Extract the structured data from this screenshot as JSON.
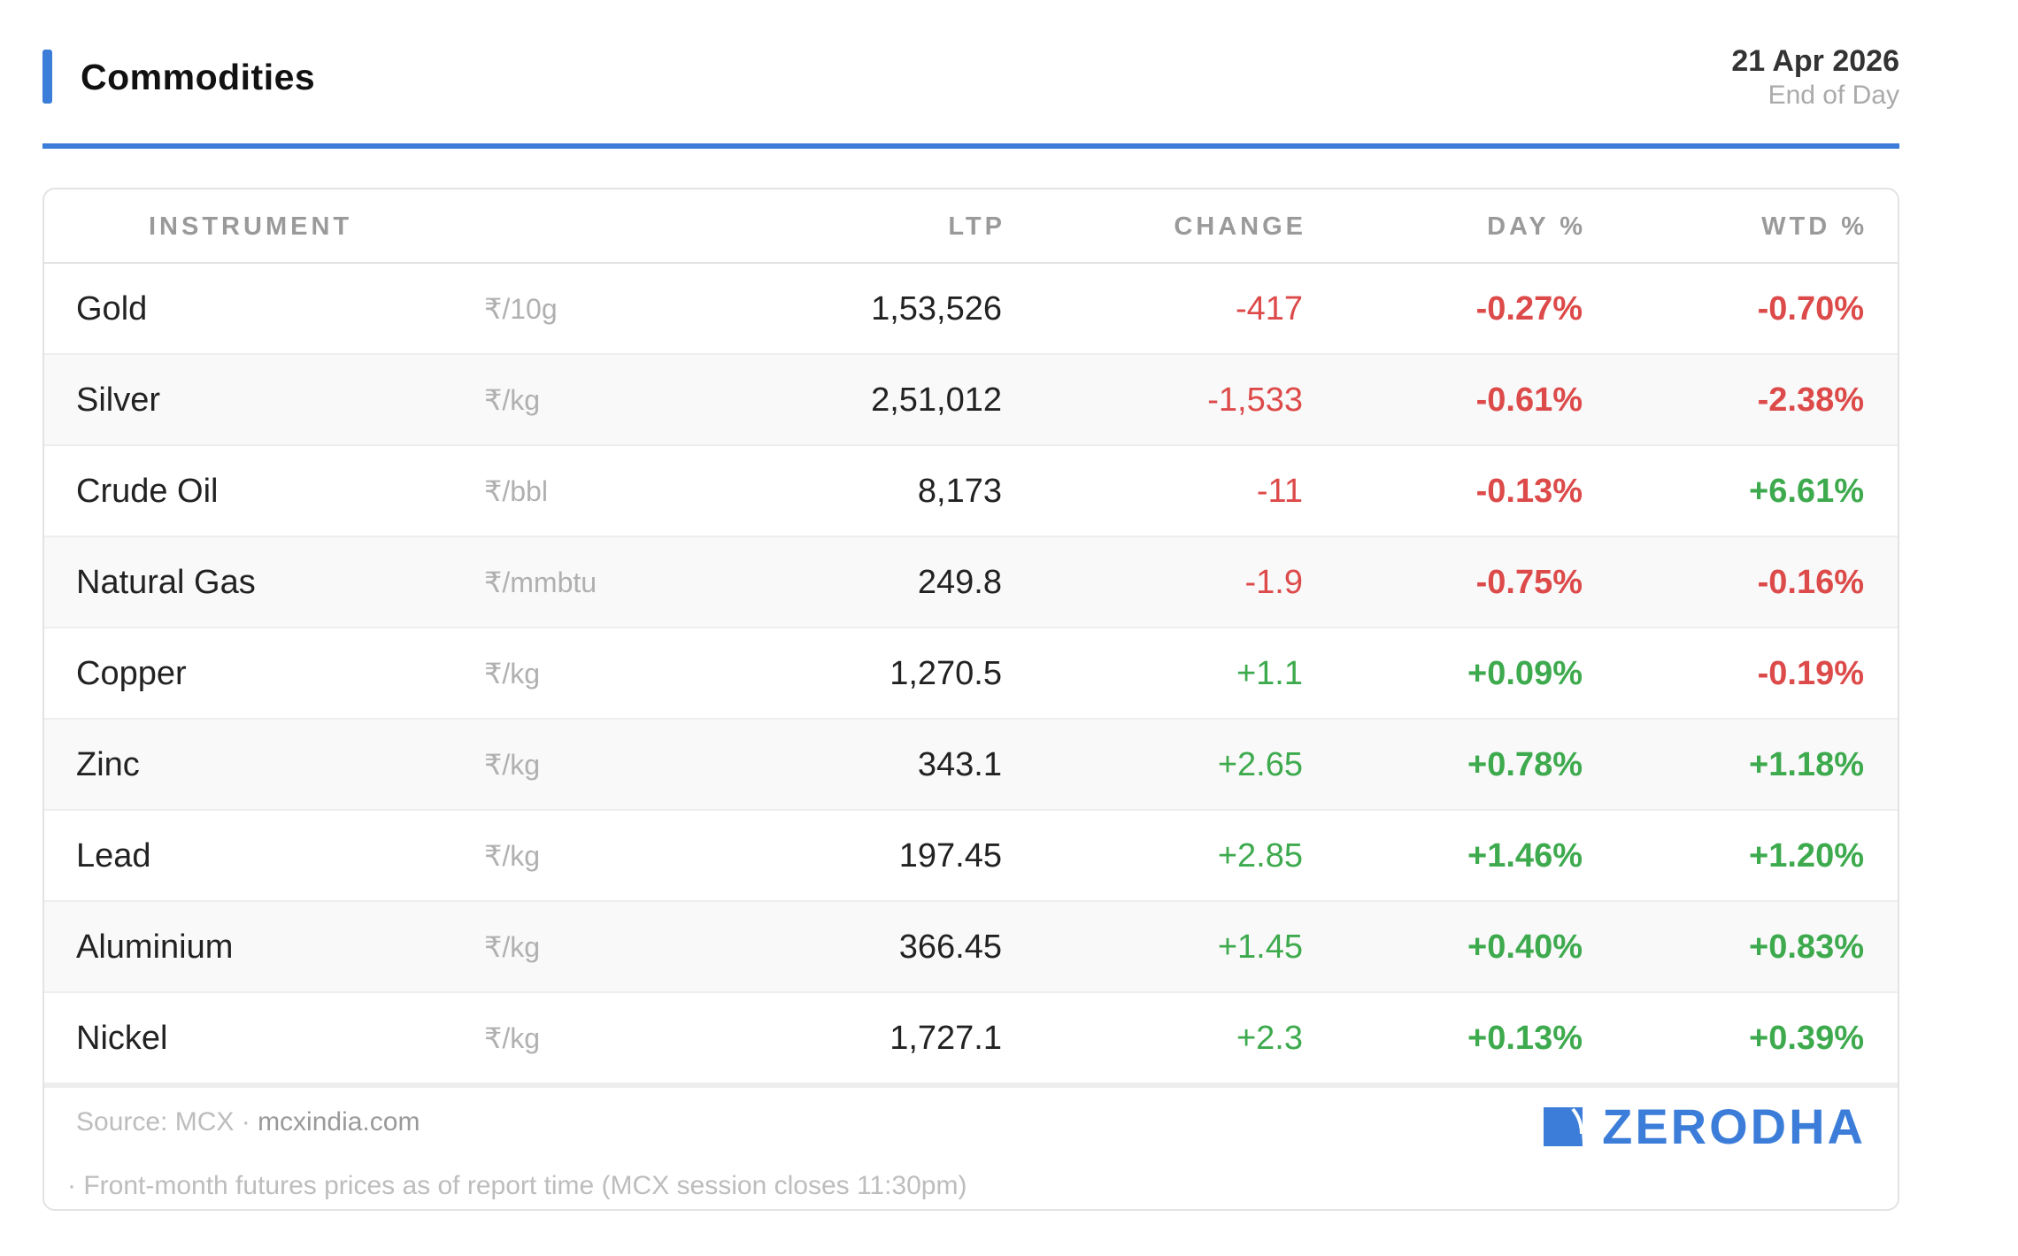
{
  "header": {
    "title": "Commodities",
    "date": "21 Apr 2026",
    "subtitle": "End of Day"
  },
  "table": {
    "columns": {
      "instrument": "INSTRUMENT",
      "ltp": "LTP",
      "change": "CHANGE",
      "day_pct": "DAY %",
      "wtd_pct": "WTD %"
    },
    "rows": [
      {
        "name": "Gold",
        "unit": "₹/10g",
        "ltp": "1,53,526",
        "change": "-417",
        "day_pct": "-0.27%",
        "wtd_pct": "-0.70%"
      },
      {
        "name": "Silver",
        "unit": "₹/kg",
        "ltp": "2,51,012",
        "change": "-1,533",
        "day_pct": "-0.61%",
        "wtd_pct": "-2.38%"
      },
      {
        "name": "Crude Oil",
        "unit": "₹/bbl",
        "ltp": "8,173",
        "change": "-11",
        "day_pct": "-0.13%",
        "wtd_pct": "+6.61%"
      },
      {
        "name": "Natural Gas",
        "unit": "₹/mmbtu",
        "ltp": "249.8",
        "change": "-1.9",
        "day_pct": "-0.75%",
        "wtd_pct": "-0.16%"
      },
      {
        "name": "Copper",
        "unit": "₹/kg",
        "ltp": "1,270.5",
        "change": "+1.1",
        "day_pct": "+0.09%",
        "wtd_pct": "-0.19%"
      },
      {
        "name": "Zinc",
        "unit": "₹/kg",
        "ltp": "343.1",
        "change": "+2.65",
        "day_pct": "+0.78%",
        "wtd_pct": "+1.18%"
      },
      {
        "name": "Lead",
        "unit": "₹/kg",
        "ltp": "197.45",
        "change": "+2.85",
        "day_pct": "+1.46%",
        "wtd_pct": "+1.20%"
      },
      {
        "name": "Aluminium",
        "unit": "₹/kg",
        "ltp": "366.45",
        "change": "+1.45",
        "day_pct": "+0.40%",
        "wtd_pct": "+0.83%"
      },
      {
        "name": "Nickel",
        "unit": "₹/kg",
        "ltp": "1,727.1",
        "change": "+2.3",
        "day_pct": "+0.13%",
        "wtd_pct": "+0.39%"
      }
    ]
  },
  "footer": {
    "source_prefix": "Source: MCX · ",
    "source_link": "mcxindia.com",
    "note": "· Front-month futures prices as of report time (MCX session closes 11:30pm)",
    "brand": "ZERODHA",
    "brand_icon": "zerodha-logo-icon"
  },
  "colors": {
    "accent": "#3b7dd8",
    "negative": "#dd4a4a",
    "positive": "#3eaa4e"
  }
}
